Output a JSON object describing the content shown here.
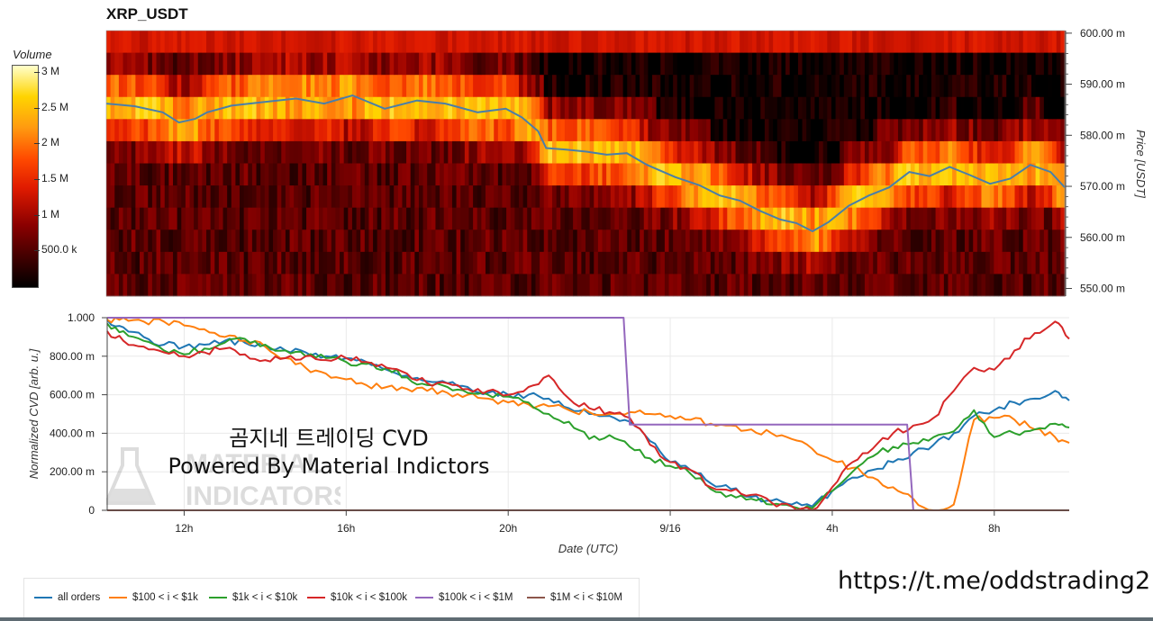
{
  "title": "XRP_USDT",
  "colorbar": {
    "label": "Volume",
    "ticks": [
      "3 M",
      "2.5 M",
      "2 M",
      "1.5 M",
      "1 M",
      "500.0 k"
    ],
    "tick_values": [
      3000000,
      2500000,
      2000000,
      1500000,
      1000000,
      500000
    ],
    "range": [
      0,
      3100000
    ]
  },
  "colors": {
    "all_orders": "#1f77b4",
    "r100_1k": "#ff7f0e",
    "r1k_10k": "#2ca02c",
    "r10k_100k": "#d62728",
    "r100k_1m": "#9467bd",
    "r1m_10m": "#8c564b",
    "price_line": "#4a7fa8"
  },
  "watermark": {
    "line1": "곰지네 트레이딩 CVD",
    "line2": "Powered By Material Indictors",
    "logo_line1": "MATERIAL",
    "logo_line2": "INDICATORS"
  },
  "telegram_link": "https://t.me/oddstrading2",
  "chart_data": [
    {
      "type": "heatmap",
      "title": "XRP_USDT",
      "ylabel": "Price [USDT]",
      "y_ticks": [
        "600.00 m",
        "590.00 m",
        "580.00 m",
        "570.00 m",
        "560.00 m",
        "550.00 m"
      ],
      "y_tick_values": [
        0.6,
        0.59,
        0.58,
        0.57,
        0.56,
        0.55
      ],
      "ylim": [
        0.5485,
        0.6005
      ],
      "x_ticks": [
        "12h",
        "16h",
        "20h",
        "9/16",
        "4h",
        "8h"
      ],
      "x_tick_values": [
        12,
        16,
        20,
        24,
        28,
        32
      ],
      "xlim": [
        10.1,
        33.85
      ],
      "price_line": {
        "x": [
          10.1,
          10.8,
          11.5,
          11.9,
          12.3,
          12.6,
          13.2,
          14.0,
          14.8,
          15.5,
          16.2,
          17.0,
          17.8,
          18.5,
          19.3,
          20.0,
          20.4,
          20.8,
          21.0,
          21.5,
          22.0,
          22.5,
          23.0,
          23.5,
          24.2,
          24.8,
          25.3,
          25.8,
          26.3,
          26.8,
          27.2,
          27.6,
          28.0,
          28.5,
          29.0,
          29.5,
          30.0,
          30.5,
          31.0,
          31.5,
          32.0,
          32.5,
          33.0,
          33.5,
          33.85
        ],
        "y": [
          0.5862,
          0.5857,
          0.5845,
          0.5825,
          0.5832,
          0.5845,
          0.5858,
          0.5865,
          0.5872,
          0.5862,
          0.5878,
          0.5852,
          0.5868,
          0.5862,
          0.5845,
          0.5852,
          0.5835,
          0.5808,
          0.5775,
          0.5772,
          0.5768,
          0.5762,
          0.5765,
          0.5742,
          0.5718,
          0.5702,
          0.5682,
          0.5672,
          0.5652,
          0.5635,
          0.5628,
          0.5612,
          0.563,
          0.5662,
          0.5682,
          0.5698,
          0.5728,
          0.572,
          0.5738,
          0.5722,
          0.5705,
          0.5715,
          0.5742,
          0.5728,
          0.5698
        ]
      }
    },
    {
      "type": "line",
      "xlabel": "Date (UTC)",
      "ylabel": "Normalized CVD [arb. u.]",
      "y_ticks": [
        "1.000",
        "800.00 m",
        "600.00 m",
        "400.00 m",
        "200.00 m",
        "0"
      ],
      "y_tick_values": [
        1.0,
        0.8,
        0.6,
        0.4,
        0.2,
        0.0
      ],
      "ylim": [
        0,
        1.0
      ],
      "x_ticks": [
        "12h",
        "16h",
        "20h",
        "9/16",
        "4h",
        "8h"
      ],
      "x_tick_values": [
        12,
        16,
        20,
        24,
        28,
        32
      ],
      "xlim": [
        10.1,
        33.85
      ],
      "x": [
        10.1,
        10.5,
        11.0,
        11.5,
        12.0,
        12.5,
        13.0,
        13.5,
        14.0,
        14.5,
        15.0,
        15.5,
        16.0,
        16.5,
        17.0,
        17.5,
        18.0,
        18.5,
        19.0,
        19.5,
        20.0,
        20.5,
        21.0,
        21.5,
        22.0,
        22.5,
        23.0,
        23.5,
        24.0,
        24.5,
        25.0,
        25.5,
        26.0,
        26.5,
        27.0,
        27.5,
        28.0,
        28.5,
        29.0,
        29.5,
        30.0,
        30.5,
        31.0,
        31.5,
        32.0,
        32.5,
        33.0,
        33.5,
        33.85
      ],
      "legend_position": "bottom",
      "series": [
        {
          "name": "all orders",
          "color_key": "all_orders",
          "values": [
            0.99,
            0.95,
            0.9,
            0.86,
            0.85,
            0.86,
            0.88,
            0.87,
            0.85,
            0.83,
            0.82,
            0.8,
            0.79,
            0.77,
            0.73,
            0.7,
            0.67,
            0.66,
            0.64,
            0.61,
            0.6,
            0.6,
            0.58,
            0.53,
            0.5,
            0.49,
            0.46,
            0.36,
            0.25,
            0.21,
            0.14,
            0.11,
            0.07,
            0.05,
            0.03,
            0.02,
            0.1,
            0.17,
            0.21,
            0.25,
            0.3,
            0.34,
            0.4,
            0.49,
            0.52,
            0.56,
            0.58,
            0.62,
            0.57
          ]
        },
        {
          "name": "$100 < i < $1k",
          "color_key": "r100_1k",
          "values": [
            0.99,
            1.0,
            0.98,
            0.98,
            0.96,
            0.94,
            0.9,
            0.88,
            0.85,
            0.79,
            0.74,
            0.71,
            0.68,
            0.65,
            0.64,
            0.63,
            0.62,
            0.61,
            0.6,
            0.58,
            0.56,
            0.55,
            0.54,
            0.52,
            0.51,
            0.5,
            0.51,
            0.5,
            0.49,
            0.47,
            0.45,
            0.44,
            0.42,
            0.4,
            0.37,
            0.32,
            0.26,
            0.22,
            0.17,
            0.12,
            0.06,
            0.0,
            0.03,
            0.47,
            0.48,
            0.47,
            0.42,
            0.38,
            0.35
          ]
        },
        {
          "name": "$1k < i < $10k",
          "color_key": "r1k_10k",
          "values": [
            0.97,
            0.93,
            0.88,
            0.83,
            0.81,
            0.84,
            0.87,
            0.89,
            0.86,
            0.83,
            0.8,
            0.79,
            0.77,
            0.76,
            0.74,
            0.69,
            0.65,
            0.64,
            0.61,
            0.6,
            0.59,
            0.56,
            0.5,
            0.46,
            0.37,
            0.39,
            0.33,
            0.27,
            0.23,
            0.19,
            0.11,
            0.08,
            0.06,
            0.03,
            0.02,
            0.01,
            0.1,
            0.2,
            0.28,
            0.33,
            0.35,
            0.38,
            0.41,
            0.52,
            0.38,
            0.4,
            0.42,
            0.45,
            0.43
          ]
        },
        {
          "name": "$10k < i < $100k",
          "color_key": "r10k_100k",
          "values": [
            0.93,
            0.88,
            0.85,
            0.82,
            0.8,
            0.82,
            0.84,
            0.81,
            0.78,
            0.79,
            0.8,
            0.78,
            0.79,
            0.77,
            0.74,
            0.71,
            0.66,
            0.66,
            0.63,
            0.62,
            0.6,
            0.64,
            0.7,
            0.58,
            0.53,
            0.51,
            0.48,
            0.34,
            0.25,
            0.21,
            0.12,
            0.1,
            0.08,
            0.04,
            0.02,
            0.0,
            0.12,
            0.25,
            0.32,
            0.4,
            0.44,
            0.48,
            0.62,
            0.74,
            0.73,
            0.83,
            0.92,
            0.98,
            0.89
          ]
        },
        {
          "name": "$100k < i < $1M",
          "color_key": "r100k_1m",
          "values": [
            1.0,
            1.0,
            1.0,
            1.0,
            1.0,
            1.0,
            1.0,
            1.0,
            1.0,
            1.0,
            1.0,
            1.0,
            1.0,
            1.0,
            1.0,
            1.0,
            1.0,
            1.0,
            1.0,
            1.0,
            1.0,
            1.0,
            1.0,
            1.0,
            1.0,
            1.0,
            0.445,
            0.445,
            0.445,
            0.445,
            0.445,
            0.445,
            0.445,
            0.445,
            0.445,
            0.445,
            0.445,
            0.445,
            0.445,
            0.445,
            0.0,
            0.0,
            0.0,
            0.0,
            0.0,
            0.0,
            0.0,
            0.0,
            0.0
          ]
        },
        {
          "name": "$1M < i < $10M",
          "color_key": "r1m_10m",
          "values": [
            0.0,
            0.0,
            0.0,
            0.0,
            0.0,
            0.0,
            0.0,
            0.0,
            0.0,
            0.0,
            0.0,
            0.0,
            0.0,
            0.0,
            0.0,
            0.0,
            0.0,
            0.0,
            0.0,
            0.0,
            0.0,
            0.0,
            0.0,
            0.0,
            0.0,
            0.0,
            0.0,
            0.0,
            0.0,
            0.0,
            0.0,
            0.0,
            0.0,
            0.0,
            0.0,
            0.0,
            0.0,
            0.0,
            0.0,
            0.0,
            0.0,
            0.0,
            0.0,
            0.0,
            0.0,
            0.0,
            0.0,
            0.0,
            0.0
          ]
        }
      ]
    }
  ]
}
